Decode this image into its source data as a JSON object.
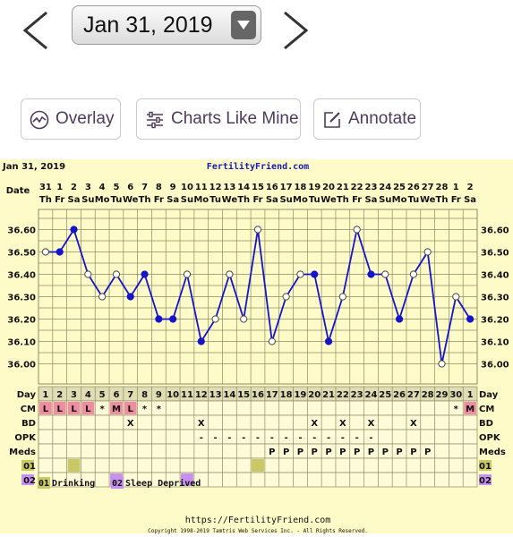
{
  "nav": {
    "selected_date": "Jan 31, 2019",
    "prev_icon": "chevron-left-icon",
    "next_icon": "chevron-right-icon"
  },
  "actions": {
    "overlay_label": "Overlay",
    "charts_like_mine_label": "Charts Like Mine",
    "annotate_label": "Annotate"
  },
  "chart_header": {
    "date": "Jan 31, 2019",
    "site": "FertilityFriend.com",
    "date_row_label": "Date"
  },
  "chart_data": {
    "type": "line",
    "dates": [
      "31",
      "1",
      "2",
      "3",
      "4",
      "5",
      "6",
      "7",
      "8",
      "9",
      "10",
      "11",
      "12",
      "13",
      "14",
      "15",
      "16",
      "17",
      "18",
      "19",
      "20",
      "21",
      "22",
      "23",
      "24",
      "25",
      "26",
      "27",
      "28",
      "1",
      "2"
    ],
    "days_of_week": [
      "Th",
      "Fr",
      "Sa",
      "Su",
      "Mo",
      "Tu",
      "We",
      "Th",
      "Fr",
      "Sa",
      "Su",
      "Mo",
      "Tu",
      "We",
      "Th",
      "Fr",
      "Sa",
      "Su",
      "Mo",
      "Tu",
      "We",
      "Th",
      "Fr",
      "Sa",
      "Su",
      "Mo",
      "Tu",
      "We",
      "Th",
      "Fr",
      "Sa"
    ],
    "cycle_days": [
      1,
      2,
      3,
      4,
      5,
      6,
      7,
      8,
      9,
      10,
      11,
      12,
      13,
      14,
      15,
      16,
      17,
      18,
      19,
      20,
      21,
      22,
      23,
      24,
      25,
      26,
      27,
      28,
      29,
      30,
      1
    ],
    "temperatures": [
      36.5,
      36.5,
      36.6,
      36.4,
      36.3,
      36.4,
      36.3,
      36.4,
      36.2,
      36.2,
      36.4,
      36.1,
      36.2,
      36.4,
      36.2,
      36.6,
      36.1,
      36.3,
      36.4,
      36.4,
      36.1,
      36.3,
      36.6,
      36.4,
      36.4,
      36.2,
      36.4,
      36.5,
      36.0,
      36.3,
      36.2
    ],
    "point_filled": [
      false,
      true,
      true,
      false,
      false,
      false,
      true,
      true,
      true,
      true,
      false,
      true,
      false,
      false,
      false,
      false,
      false,
      false,
      false,
      true,
      true,
      false,
      false,
      true,
      false,
      true,
      false,
      false,
      false,
      false,
      true
    ],
    "y_ticks": [
      "36.60",
      "36.50",
      "36.40",
      "36.30",
      "36.20",
      "36.10",
      "36.00"
    ],
    "ylim": [
      35.95,
      36.65
    ],
    "grid": true,
    "line_color": "#1414c8"
  },
  "rows": {
    "day_label": "Day",
    "cm_label": "CM",
    "bd_label": "BD",
    "opk_label": "OPK",
    "meds_label": "Meds",
    "o1_label": "01",
    "o2_label": "02",
    "cm": [
      "L",
      "L",
      "L",
      "L",
      "*",
      "M",
      "L",
      "*",
      "*",
      "",
      "",
      "",
      "",
      "",
      "",
      "",
      "",
      "",
      "",
      "",
      "",
      "",
      "",
      "",
      "",
      "",
      "",
      "",
      "",
      "*",
      "M"
    ],
    "cm_highlight": [
      true,
      true,
      true,
      true,
      false,
      true,
      true,
      false,
      false,
      false,
      false,
      false,
      false,
      false,
      false,
      false,
      false,
      false,
      false,
      false,
      false,
      false,
      false,
      false,
      false,
      false,
      false,
      false,
      false,
      false,
      true
    ],
    "bd": [
      "",
      "",
      "",
      "",
      "",
      "",
      "X",
      "",
      "",
      "",
      "",
      "X",
      "",
      "",
      "",
      "",
      "",
      "",
      "",
      "X",
      "",
      "X",
      "",
      "X",
      "",
      "",
      "X",
      "",
      "",
      "",
      ""
    ],
    "opk": [
      "",
      "",
      "",
      "",
      "",
      "",
      "",
      "",
      "",
      "",
      "",
      "-",
      "-",
      "-",
      "-",
      "-",
      "-",
      "-",
      "-",
      "-",
      "-",
      "-",
      "-",
      "-",
      "",
      "",
      "",
      "",
      "",
      "",
      ""
    ],
    "meds": [
      "",
      "",
      "",
      "",
      "",
      "",
      "",
      "",
      "",
      "",
      "",
      "",
      "",
      "",
      "",
      "",
      "P",
      "P",
      "P",
      "P",
      "P",
      "P",
      "P",
      "P",
      "P",
      "P",
      "P",
      "P",
      "",
      "",
      ""
    ],
    "o1": [
      false,
      false,
      true,
      false,
      false,
      false,
      false,
      false,
      false,
      false,
      false,
      false,
      false,
      false,
      false,
      true,
      false,
      false,
      false,
      false,
      false,
      false,
      false,
      false,
      false,
      false,
      false,
      false,
      false,
      false,
      false
    ],
    "o2": [
      false,
      false,
      false,
      false,
      false,
      true,
      false,
      false,
      false,
      false,
      true,
      false,
      false,
      false,
      false,
      false,
      false,
      false,
      false,
      false,
      false,
      false,
      false,
      false,
      false,
      false,
      false,
      false,
      false,
      false,
      false
    ]
  },
  "legend": {
    "o1_code": "01",
    "o1_text": "Drinking",
    "o2_code": "02",
    "o2_text": "Sleep Deprived",
    "o1_color": "#c8c864",
    "o2_color": "#c890f0"
  },
  "footer": {
    "url": "https://FertilityFriend.com",
    "copyright": "Copyright 1998-2019 Tamtris Web Services Inc. - All Rights Reserved."
  },
  "colors": {
    "chart_bg": "#fffbc8",
    "grid": "#8c8c64",
    "row_bg": "#fffbd8",
    "header_row_bg": "#e0dcb4",
    "cm_pink": "#f08ca0"
  }
}
